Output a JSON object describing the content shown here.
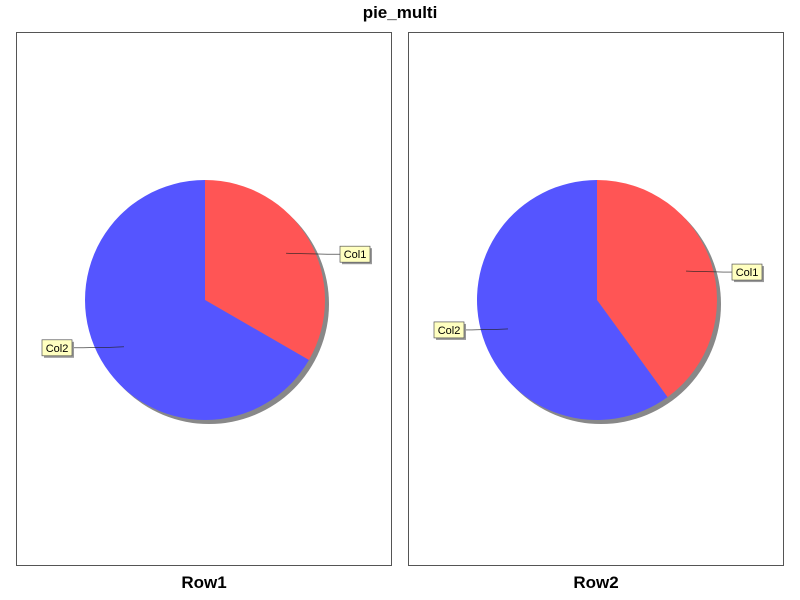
{
  "chart_data": {
    "type": "pie",
    "title": "pie_multi",
    "categories": [
      "Col1",
      "Col2"
    ],
    "colors": {
      "Col1": "#ff5555",
      "Col2": "#5555ff"
    },
    "label_box_fill": "#ffffc0",
    "pies": [
      {
        "name": "Row1",
        "values": [
          1,
          2
        ]
      },
      {
        "name": "Row2",
        "values": [
          2,
          3
        ]
      }
    ]
  }
}
